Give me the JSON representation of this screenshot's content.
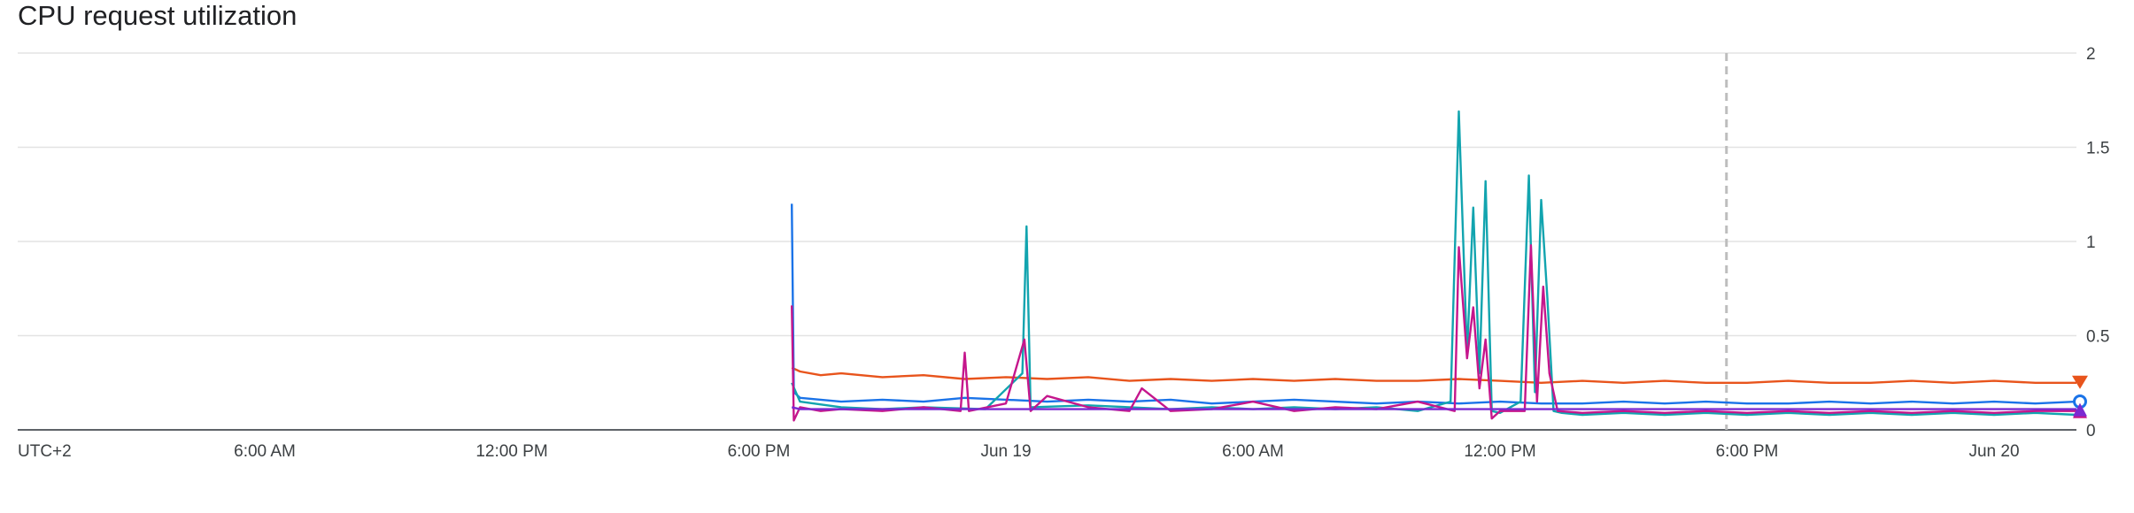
{
  "chart_data": {
    "type": "line",
    "title": "CPU request utilization",
    "xlabel": "",
    "ylabel": "",
    "timezone_label": "UTC+2",
    "x_tick_labels": [
      "UTC+2",
      "6:00 AM",
      "12:00 PM",
      "6:00 PM",
      "Jun 19",
      "6:00 AM",
      "12:00 PM",
      "6:00 PM",
      "Jun 20"
    ],
    "x_range_hours": [
      0,
      50
    ],
    "ylim": [
      0,
      2
    ],
    "y_ticks": [
      "0",
      "0.5",
      "1",
      "1.5",
      "2"
    ],
    "grid": true,
    "marker_line_hour": 41.5,
    "series": [
      {
        "color": "#e8541c",
        "end_marker": "triangle-down",
        "x_hours": [
          18.8,
          19.0,
          19.5,
          20.0,
          21.0,
          22.0,
          23.0,
          24.0,
          25.0,
          26.0,
          27.0,
          28.0,
          29.0,
          30.0,
          31.0,
          32.0,
          33.0,
          34.0,
          35.0,
          36.0,
          37.0,
          38.0,
          39.0,
          40.0,
          41.0,
          42.0,
          43.0,
          44.0,
          45.0,
          46.0,
          47.0,
          48.0,
          49.0,
          50.0
        ],
        "values": [
          0.33,
          0.31,
          0.29,
          0.3,
          0.28,
          0.29,
          0.27,
          0.28,
          0.27,
          0.28,
          0.26,
          0.27,
          0.26,
          0.27,
          0.26,
          0.27,
          0.26,
          0.26,
          0.27,
          0.26,
          0.25,
          0.26,
          0.25,
          0.26,
          0.25,
          0.25,
          0.26,
          0.25,
          0.25,
          0.26,
          0.25,
          0.26,
          0.25,
          0.25
        ]
      },
      {
        "color": "#1a73e8",
        "end_marker": "circle",
        "x_hours": [
          18.8,
          18.85,
          19.0,
          19.5,
          20.0,
          21.0,
          22.0,
          23.0,
          24.0,
          25.0,
          26.0,
          27.0,
          28.0,
          29.0,
          30.0,
          31.0,
          32.0,
          33.0,
          34.0,
          35.0,
          36.0,
          37.0,
          38.0,
          39.0,
          40.0,
          41.0,
          42.0,
          43.0,
          44.0,
          45.0,
          46.0,
          47.0,
          48.0,
          49.0,
          50.0
        ],
        "values": [
          1.2,
          0.2,
          0.17,
          0.16,
          0.15,
          0.16,
          0.15,
          0.17,
          0.16,
          0.15,
          0.16,
          0.15,
          0.16,
          0.14,
          0.15,
          0.16,
          0.15,
          0.14,
          0.15,
          0.14,
          0.15,
          0.14,
          0.14,
          0.15,
          0.14,
          0.15,
          0.14,
          0.14,
          0.15,
          0.14,
          0.15,
          0.14,
          0.15,
          0.14,
          0.15
        ]
      },
      {
        "color": "#12a4af",
        "end_marker": "none",
        "x_hours": [
          18.8,
          19.0,
          20.0,
          21.0,
          22.0,
          23.5,
          24.4,
          24.5,
          24.6,
          26.0,
          27.0,
          28.0,
          29.0,
          30.0,
          31.0,
          32.0,
          33.0,
          34.0,
          34.8,
          35.0,
          35.2,
          35.35,
          35.5,
          35.65,
          35.8,
          36.0,
          36.5,
          36.7,
          36.85,
          37.0,
          37.15,
          37.3,
          37.5,
          38.0,
          39.0,
          40.0,
          41.0,
          42.0,
          43.0,
          44.0,
          45.0,
          46.0,
          47.0,
          48.0,
          49.0,
          50.0
        ],
        "values": [
          0.25,
          0.15,
          0.12,
          0.11,
          0.12,
          0.11,
          0.3,
          1.08,
          0.12,
          0.13,
          0.12,
          0.11,
          0.12,
          0.11,
          0.12,
          0.11,
          0.12,
          0.1,
          0.15,
          1.69,
          0.4,
          1.18,
          0.3,
          1.32,
          0.1,
          0.09,
          0.15,
          1.35,
          0.2,
          1.22,
          0.7,
          0.1,
          0.09,
          0.08,
          0.09,
          0.08,
          0.09,
          0.08,
          0.09,
          0.08,
          0.09,
          0.08,
          0.09,
          0.08,
          0.09,
          0.08
        ]
      },
      {
        "color": "#c5168c",
        "end_marker": "triangle-up",
        "x_hours": [
          18.8,
          18.85,
          19.0,
          19.5,
          20.0,
          21.0,
          22.0,
          22.9,
          23.0,
          23.1,
          24.0,
          24.45,
          24.6,
          25.0,
          26.0,
          27.0,
          27.3,
          28.0,
          29.0,
          30.0,
          31.0,
          32.0,
          33.0,
          34.0,
          34.9,
          35.0,
          35.2,
          35.35,
          35.5,
          35.65,
          35.8,
          36.0,
          36.6,
          36.75,
          36.9,
          37.05,
          37.2,
          37.4,
          38.0,
          39.0,
          40.0,
          41.0,
          42.0,
          43.0,
          44.0,
          45.0,
          46.0,
          47.0,
          48.0,
          49.0,
          50.0
        ],
        "values": [
          0.66,
          0.05,
          0.12,
          0.1,
          0.11,
          0.1,
          0.12,
          0.1,
          0.41,
          0.1,
          0.14,
          0.48,
          0.1,
          0.18,
          0.12,
          0.1,
          0.22,
          0.1,
          0.11,
          0.15,
          0.1,
          0.12,
          0.11,
          0.15,
          0.1,
          0.97,
          0.38,
          0.65,
          0.22,
          0.48,
          0.06,
          0.1,
          0.1,
          0.98,
          0.15,
          0.76,
          0.3,
          0.1,
          0.09,
          0.1,
          0.09,
          0.1,
          0.09,
          0.1,
          0.09,
          0.1,
          0.09,
          0.1,
          0.09,
          0.1,
          0.1
        ]
      },
      {
        "color": "#7b2ad1",
        "end_marker": "triangle-up",
        "x_hours": [
          18.8,
          19.0,
          20.0,
          21.0,
          22.0,
          23.0,
          24.0,
          25.0,
          26.0,
          27.0,
          28.0,
          29.0,
          30.0,
          31.0,
          32.0,
          33.0,
          34.0,
          35.0,
          36.0,
          37.0,
          38.0,
          39.0,
          40.0,
          41.0,
          42.0,
          43.0,
          44.0,
          45.0,
          46.0,
          47.0,
          48.0,
          49.0,
          50.0
        ],
        "values": [
          0.12,
          0.11,
          0.11,
          0.11,
          0.11,
          0.11,
          0.11,
          0.11,
          0.11,
          0.11,
          0.11,
          0.11,
          0.11,
          0.11,
          0.11,
          0.11,
          0.11,
          0.11,
          0.11,
          0.11,
          0.11,
          0.11,
          0.11,
          0.11,
          0.11,
          0.11,
          0.11,
          0.11,
          0.11,
          0.11,
          0.11,
          0.11,
          0.11
        ]
      }
    ]
  }
}
